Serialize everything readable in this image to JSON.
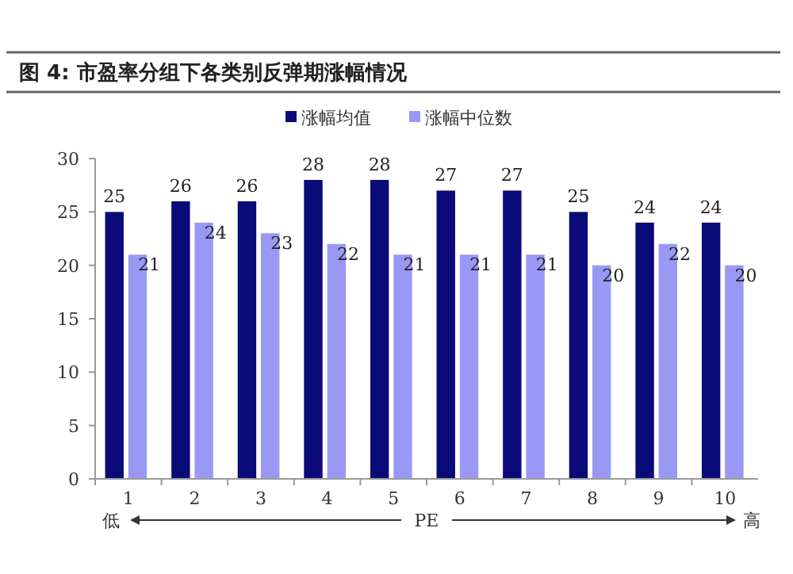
{
  "chart_data": {
    "type": "bar",
    "title": "图 4:  市盈率分组下各类别反弹期涨幅情况",
    "categories": [
      "1",
      "2",
      "3",
      "4",
      "5",
      "6",
      "7",
      "8",
      "9",
      "10"
    ],
    "series": [
      {
        "name": "涨幅均值",
        "color": "#0a0a78",
        "values": [
          25,
          26,
          26,
          28,
          28,
          27,
          27,
          25,
          24,
          24
        ]
      },
      {
        "name": "涨幅中位数",
        "color": "#9999f5",
        "values": [
          21,
          24,
          23,
          22,
          21,
          21,
          21,
          20,
          22,
          20
        ]
      }
    ],
    "xlabel": "PE",
    "annotations": [
      "低",
      "高"
    ],
    "ylim": [
      0,
      30
    ],
    "yticks": [
      0,
      5,
      10,
      15,
      20,
      25,
      30
    ],
    "grid": false,
    "legend": "top",
    "data_labels": true
  }
}
